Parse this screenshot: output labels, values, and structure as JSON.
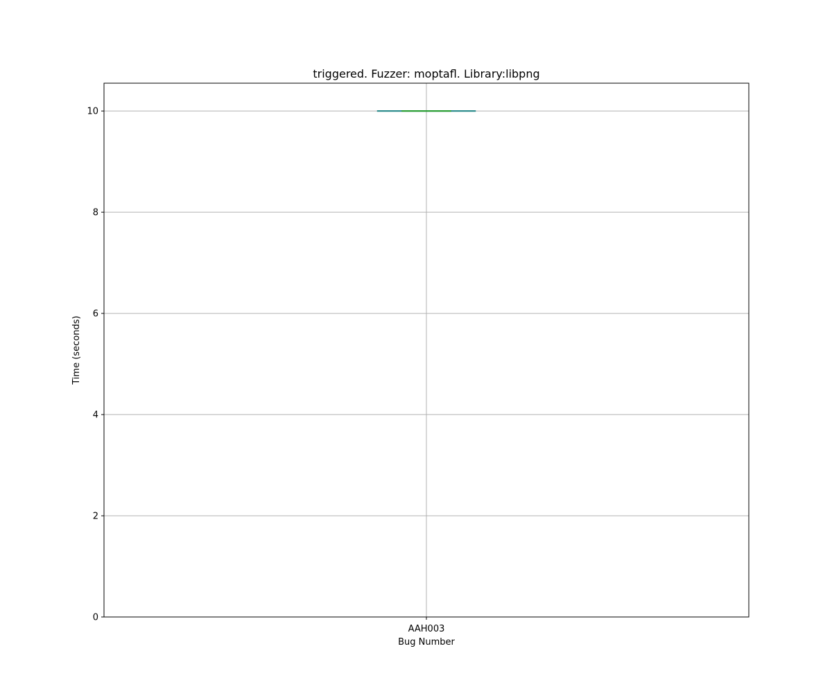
{
  "chart_data": {
    "type": "boxplot",
    "title": "triggered. Fuzzer: moptafl. Library:libpng",
    "xlabel": "Bug Number",
    "ylabel": "Time (seconds)",
    "categories": [
      "AAH003"
    ],
    "boxes": [
      {
        "category": "AAH003",
        "min": 10,
        "q1": 10,
        "median": 10,
        "q3": 10,
        "max": 10
      }
    ],
    "ylim": [
      0,
      10.55
    ],
    "yticks": [
      0,
      2,
      4,
      6,
      8,
      10
    ],
    "grid": true,
    "colors": {
      "box": "#1f77b4",
      "median": "#2ca02c",
      "whisker": "#1f77b4",
      "cap": "#2a8a8a",
      "grid": "#b0b0b0",
      "axis": "#000000"
    }
  }
}
